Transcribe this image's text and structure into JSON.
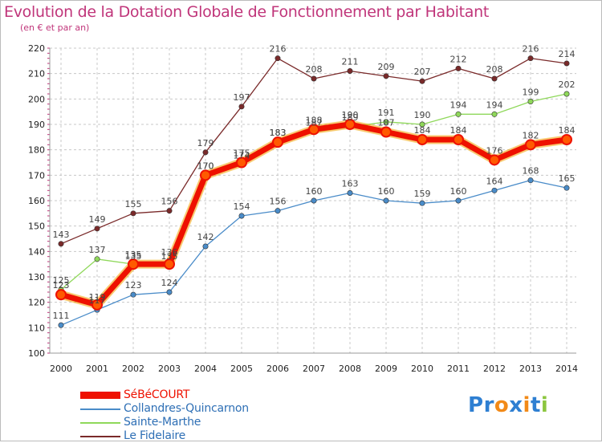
{
  "title": "Evolution de la Dotation Globale de Fonctionnement par Habitant",
  "subtitle": "(en € et par an)",
  "brand": "Proxiti",
  "colors": {
    "title": "#c0357a",
    "grid": "#c8c8c8",
    "axis_ticks": "#c0357a",
    "series": [
      "#ee1100",
      "#4a8cc9",
      "#8fd85a",
      "#7a2a2a"
    ],
    "brand_letters": [
      "#2e7fd2",
      "#2e7fd2",
      "#f28a18",
      "#2e7fd2",
      "#f28a18",
      "#2e7fd2",
      "#8cc63f"
    ]
  },
  "chart_data": {
    "type": "line",
    "title": "Evolution de la Dotation Globale de Fonctionnement par Habitant",
    "subtitle": "(en € et par an)",
    "x": [
      "2000",
      "2001",
      "2002",
      "2003",
      "2004",
      "2005",
      "2006",
      "2007",
      "2008",
      "2009",
      "2010",
      "2011",
      "2012",
      "2013",
      "2014"
    ],
    "ylim": [
      100,
      220
    ],
    "yticks": [
      100,
      110,
      120,
      130,
      140,
      150,
      160,
      170,
      180,
      190,
      200,
      210,
      220
    ],
    "grid": true,
    "legend_position": "bottom-left",
    "series": [
      {
        "name": "SéBéCOURT",
        "values": [
          123,
          119,
          135,
          135,
          170,
          175,
          183,
          188,
          190,
          187,
          184,
          184,
          176,
          182,
          184
        ]
      },
      {
        "name": "Collandres-Quincarnon",
        "values": [
          111,
          117,
          123,
          124,
          142,
          154,
          156,
          160,
          163,
          160,
          159,
          160,
          164,
          168,
          165
        ]
      },
      {
        "name": "Sainte-Marthe",
        "values": [
          125,
          137,
          135,
          136,
          170,
          174,
          183,
          187,
          189,
          191,
          190,
          194,
          194,
          199,
          202
        ]
      },
      {
        "name": "Le Fidelaire",
        "values": [
          143,
          149,
          155,
          156,
          179,
          197,
          216,
          208,
          211,
          209,
          207,
          212,
          208,
          216,
          214
        ]
      }
    ]
  }
}
